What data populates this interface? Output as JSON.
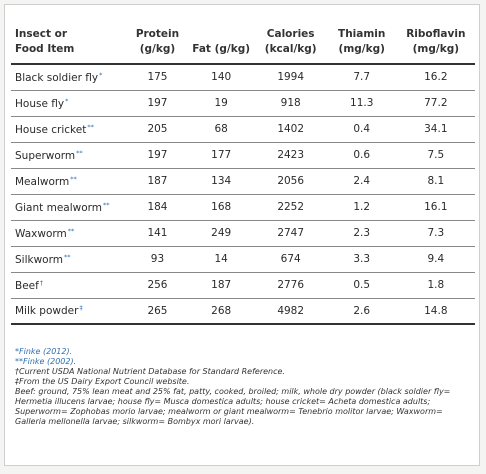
{
  "table": {
    "headers": [
      [
        "Insect or",
        "Food Item"
      ],
      [
        "Protein",
        "(g/kg)"
      ],
      [
        "",
        "Fat (g/kg)"
      ],
      [
        "Calories",
        "(kcal/kg)"
      ],
      [
        "Thiamin",
        "(mg/kg)"
      ],
      [
        "Riboflavin",
        "(mg/kg)"
      ]
    ],
    "rows": [
      {
        "name": "Black soldier fly",
        "mark": "*",
        "values": [
          "175",
          "140",
          "1994",
          "7.7",
          "16.2"
        ]
      },
      {
        "name": "House fly",
        "mark": "*",
        "values": [
          "197",
          "19",
          "918",
          "11.3",
          "77.2"
        ]
      },
      {
        "name": "House cricket",
        "mark": "**",
        "values": [
          "205",
          "68",
          "1402",
          "0.4",
          "34.1"
        ]
      },
      {
        "name": "Superworm",
        "mark": "**",
        "values": [
          "197",
          "177",
          "2423",
          "0.6",
          "7.5"
        ]
      },
      {
        "name": "Mealworm",
        "mark": "**",
        "values": [
          "187",
          "134",
          "2056",
          "2.4",
          "8.1"
        ]
      },
      {
        "name": "Giant mealworm",
        "mark": "**",
        "values": [
          "184",
          "168",
          "2252",
          "1.2",
          "16.1"
        ]
      },
      {
        "name": "Waxworm",
        "mark": "**",
        "values": [
          "141",
          "249",
          "2747",
          "2.3",
          "7.3"
        ]
      },
      {
        "name": "Silkworm",
        "mark": "**",
        "values": [
          "93",
          "14",
          "674",
          "3.3",
          "9.4"
        ]
      },
      {
        "name": "Beef",
        "mark": "†",
        "values": [
          "256",
          "187",
          "2776",
          "0.5",
          "1.8"
        ]
      },
      {
        "name": "Milk powder",
        "mark": "‡",
        "values": [
          "265",
          "268",
          "4982",
          "2.6",
          "14.8"
        ]
      }
    ]
  },
  "notes": {
    "n1_mark": "*",
    "n1_text": "Finke (2012).",
    "n2_mark": "**",
    "n2_text": "Finke (2002).",
    "n3_mark": "†",
    "n3_text": "Current USDA National Nutrient Database for Standard Reference.",
    "n4_mark": "‡",
    "n4_text": "From the US Dairy Export Council website.",
    "n5_text": "Beef: ground, 75% lean meat and 25% fat, patty, cooked, broiled; milk, whole dry powder (black soldier fly= Hermetia illucens larvae; house fly= Musca domestica adults; house cricket= Acheta domestica adults; Superworm= Zophobas morio larvae; mealworm or giant mealworm= Tenebrio molitor larvae; Waxworm= Galleria mellonella larvae; silkworm= Bombyx mori larvae)."
  },
  "colors": {
    "note_mark": "#2f6fb0",
    "rule": "#333333"
  }
}
